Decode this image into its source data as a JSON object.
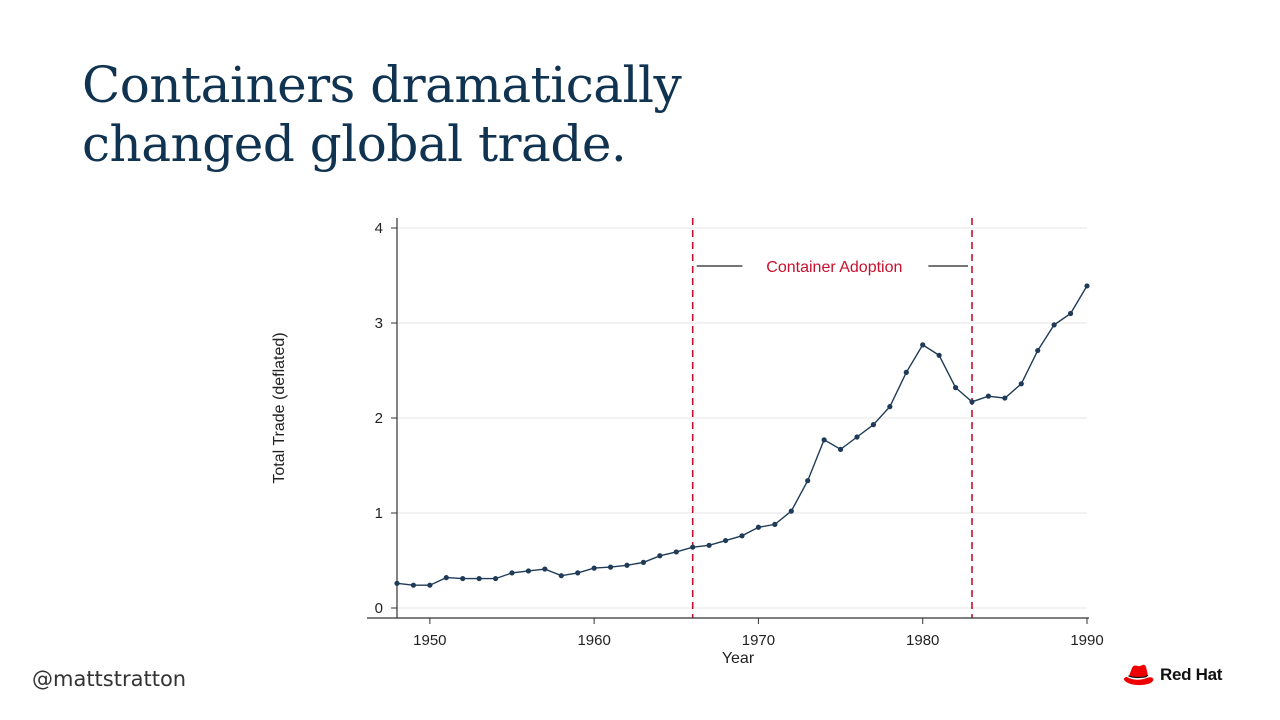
{
  "slide": {
    "title_lines": [
      "Containers dramatically",
      "changed global trade."
    ],
    "handle": "@mattstratton",
    "brand": {
      "name": "Red Hat",
      "icon": "red-hat-icon",
      "color": "#ee0000"
    }
  },
  "chart_data": {
    "type": "line",
    "title": "",
    "xlabel": "Year",
    "ylabel": "Total Trade (deflated)",
    "xlim": [
      1948,
      1990
    ],
    "ylim": [
      0,
      4
    ],
    "x_ticks": [
      1950,
      1960,
      1970,
      1980,
      1990
    ],
    "y_ticks": [
      0,
      1,
      2,
      3,
      4
    ],
    "grid": "horizontal",
    "series": [
      {
        "color": "#1f3b57",
        "x": [
          1948,
          1949,
          1950,
          1951,
          1952,
          1953,
          1954,
          1955,
          1956,
          1957,
          1958,
          1959,
          1960,
          1961,
          1962,
          1963,
          1964,
          1965,
          1966,
          1967,
          1968,
          1969,
          1970,
          1971,
          1972,
          1973,
          1974,
          1975,
          1976,
          1977,
          1978,
          1979,
          1980,
          1981,
          1982,
          1983,
          1984,
          1985,
          1986,
          1987,
          1988,
          1989,
          1990
        ],
        "y": [
          0.26,
          0.24,
          0.24,
          0.32,
          0.31,
          0.31,
          0.31,
          0.37,
          0.39,
          0.41,
          0.34,
          0.37,
          0.42,
          0.43,
          0.45,
          0.48,
          0.55,
          0.59,
          0.64,
          0.66,
          0.71,
          0.76,
          0.85,
          0.88,
          1.02,
          1.34,
          1.77,
          1.67,
          1.8,
          1.93,
          2.12,
          2.48,
          2.77,
          2.66,
          2.32,
          2.17,
          2.23,
          2.21,
          2.36,
          2.71,
          2.98,
          3.1,
          3.39
        ]
      }
    ],
    "annotations": [
      {
        "type": "vline",
        "x": 1966,
        "color": "#c8102e"
      },
      {
        "type": "vline",
        "x": 1983,
        "color": "#c8102e"
      },
      {
        "type": "range-label",
        "text": "Container Adoption",
        "x_from": 1966,
        "x_to": 1983,
        "y": 3.6,
        "color": "#c8102e"
      }
    ]
  }
}
